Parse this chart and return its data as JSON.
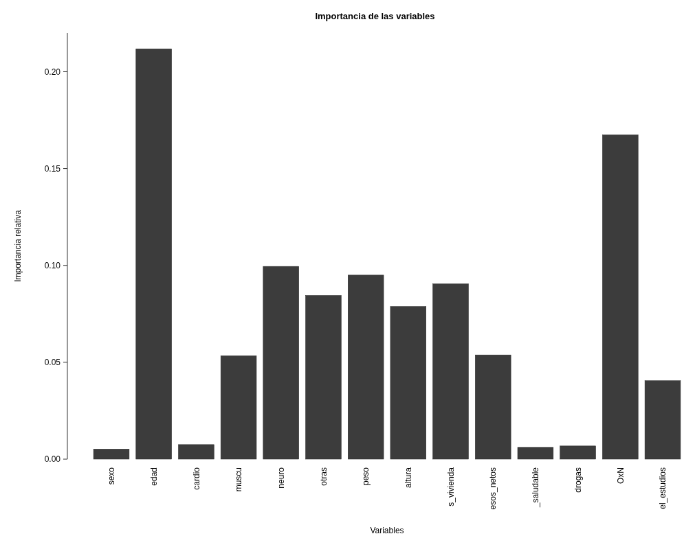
{
  "chart_data": {
    "type": "bar",
    "title": "Importancia de las variables",
    "xlabel": "Variables",
    "ylabel": "Importancia relativa",
    "categories": [
      "sexo",
      "edad",
      "cardio",
      "muscu",
      "neuro",
      "otras",
      "peso",
      "altura",
      "s_vivienda",
      "esos_netos",
      "_saludable",
      "drogas",
      "OxN",
      "el_estudios"
    ],
    "values": [
      0.0052,
      0.2118,
      0.0075,
      0.0534,
      0.0995,
      0.0845,
      0.095,
      0.0788,
      0.0905,
      0.0538,
      0.0061,
      0.0068,
      0.1674,
      0.0405
    ],
    "color": "#3c3c3c",
    "ylim": [
      0,
      0.22
    ],
    "yticks": [
      {
        "value": 0,
        "label": "0.00"
      },
      {
        "value": 0.05,
        "label": "0.05"
      },
      {
        "value": 0.1,
        "label": "0.10"
      },
      {
        "value": 0.15,
        "label": "0.15"
      },
      {
        "value": 0.2,
        "label": "0.20"
      }
    ],
    "grid": false
  }
}
